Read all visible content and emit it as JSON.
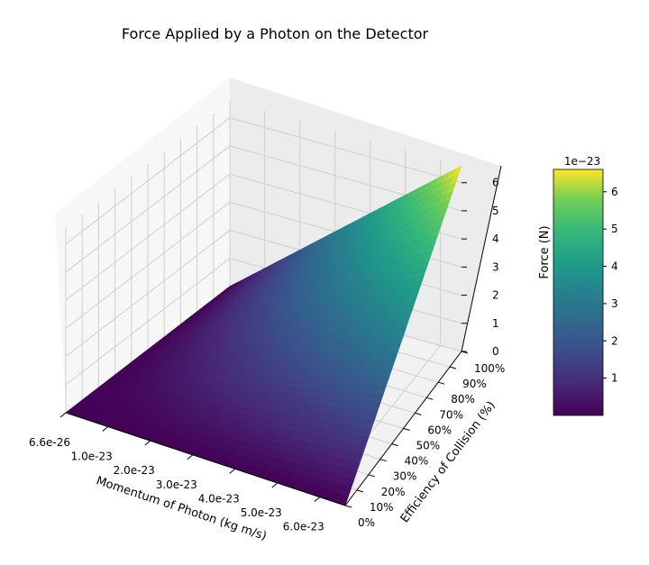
{
  "chart_data": {
    "type": "surface",
    "title": "Force Applied by a Photon on the Detector",
    "xlabel": "Momentum of Photon (kg m/s)",
    "ylabel": "Efficiency of Collision (%)",
    "zlabel": "Force (N)",
    "x_ticks": [
      "6.6e-26",
      "1.0e-23",
      "2.0e-23",
      "3.0e-23",
      "4.0e-23",
      "5.0e-23",
      "6.0e-23"
    ],
    "x_tick_values": [
      6.6e-26,
      1e-23,
      2e-23,
      3e-23,
      4e-23,
      5e-23,
      6e-23
    ],
    "xlim": [
      6.6e-26,
      6.6e-23
    ],
    "y_ticks": [
      "0%",
      "10%",
      "20%",
      "30%",
      "40%",
      "50%",
      "60%",
      "70%",
      "80%",
      "90%",
      "100%"
    ],
    "y_tick_values": [
      0,
      10,
      20,
      30,
      40,
      50,
      60,
      70,
      80,
      90,
      100
    ],
    "ylim": [
      0,
      100
    ],
    "z_ticks": [
      "0",
      "1",
      "2",
      "3",
      "4",
      "5",
      "6"
    ],
    "z_tick_values": [
      0,
      1,
      2,
      3,
      4,
      5,
      6
    ],
    "z_scale_label": "1e−23",
    "zlim": [
      0,
      6.6
    ],
    "surface_formula": "force = momentum * efficiency/100",
    "surface_corners": [
      {
        "momentum": 6.6e-26,
        "efficiency": 0,
        "force": 0
      },
      {
        "momentum": 6.6e-23,
        "efficiency": 0,
        "force": 0
      },
      {
        "momentum": 6.6e-26,
        "efficiency": 100,
        "force": 6.6e-26
      },
      {
        "momentum": 6.6e-23,
        "efficiency": 100,
        "force": 6.6e-23
      }
    ],
    "colormap": "viridis",
    "colorbar": {
      "ticks": [
        "1",
        "2",
        "3",
        "4",
        "5",
        "6"
      ],
      "tick_values": [
        1,
        2,
        3,
        4,
        5,
        6
      ],
      "range": [
        0,
        6.6
      ],
      "scale_label": "1e−23"
    },
    "grid": true
  }
}
